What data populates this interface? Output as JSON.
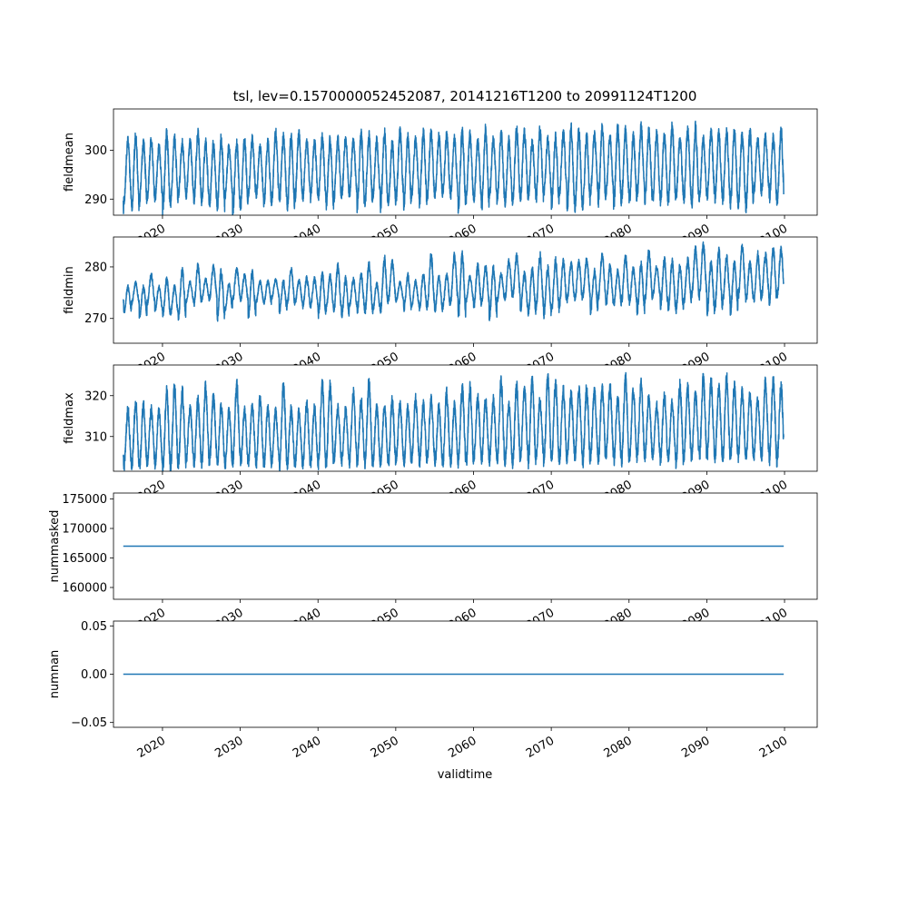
{
  "chart_data": {
    "type": "line",
    "title": "tsl, lev=0.1570000052452087, 20141216T1200 to 20991124T1200",
    "xlabel": "validtime",
    "x_range": [
      "2014-12-16",
      "2099-11-24"
    ],
    "xlim": [
      2013.7,
      2104.2
    ],
    "x_ticks": [
      2020,
      2030,
      2040,
      2050,
      2060,
      2070,
      2080,
      2090,
      2100
    ],
    "x_tick_labels": [
      "2020",
      "2030",
      "2040",
      "2050",
      "2060",
      "2070",
      "2080",
      "2090",
      "2100"
    ],
    "line_color": "#1f77b4",
    "grid": false,
    "panels": [
      {
        "name": "fieldmean",
        "ylabel": "fieldmean",
        "ylim": [
          286.7,
          308.5
        ],
        "y_ticks": [
          290,
          300
        ],
        "y_tick_labels": [
          "290",
          "300"
        ],
        "series_form": "seasonal",
        "seasonal_summary": {
          "summer_peak": [
            301.5,
            303.5
          ],
          "winter_trough": [
            289.5,
            290.5
          ],
          "peak_range": [
            300.5,
            306.0
          ],
          "trough_range": [
            287.5,
            293.5
          ],
          "annual_max": 307.2,
          "annual_min": 287.5
        }
      },
      {
        "name": "fieldmin",
        "ylabel": "fieldmin",
        "ylim": [
          265.2,
          285.8
        ],
        "y_ticks": [
          270,
          280
        ],
        "y_tick_labels": [
          "270",
          "280"
        ],
        "series_form": "seasonal",
        "seasonal_summary": {
          "summer_peak": [
            277.0,
            282.5
          ],
          "winter_trough": [
            272.0,
            273.0
          ],
          "peak_range": [
            276.0,
            285.0
          ],
          "trough_range": [
            267.0,
            274.5
          ],
          "annual_max": 285.0,
          "annual_min": 266.0
        }
      },
      {
        "name": "fieldmax",
        "ylabel": "fieldmax",
        "ylim": [
          301.5,
          327.5
        ],
        "y_ticks": [
          310,
          320
        ],
        "y_tick_labels": [
          "310",
          "320"
        ],
        "series_form": "seasonal",
        "seasonal_summary": {
          "summer_peak": [
            318.5,
            321.5
          ],
          "winter_trough": [
            303.5,
            305.0
          ],
          "peak_range": [
            314.0,
            326.5
          ],
          "trough_range": [
            302.5,
            306.0
          ],
          "annual_max": 326.5,
          "annual_min": 302.5
        }
      },
      {
        "name": "nummasked",
        "ylabel": "nummasked",
        "ylim": [
          158000,
          176000
        ],
        "y_ticks": [
          160000,
          165000,
          170000,
          175000
        ],
        "y_tick_labels": [
          "160000",
          "165000",
          "170000",
          "175000"
        ],
        "series_form": "constant",
        "constant_value": 167000
      },
      {
        "name": "numnan",
        "ylabel": "numnan",
        "ylim": [
          -0.055,
          0.055
        ],
        "y_ticks": [
          -0.05,
          0,
          0.05
        ],
        "y_tick_labels": [
          "−0.05",
          "0.00",
          "0.05"
        ],
        "series_form": "constant",
        "constant_value": 0
      }
    ]
  }
}
